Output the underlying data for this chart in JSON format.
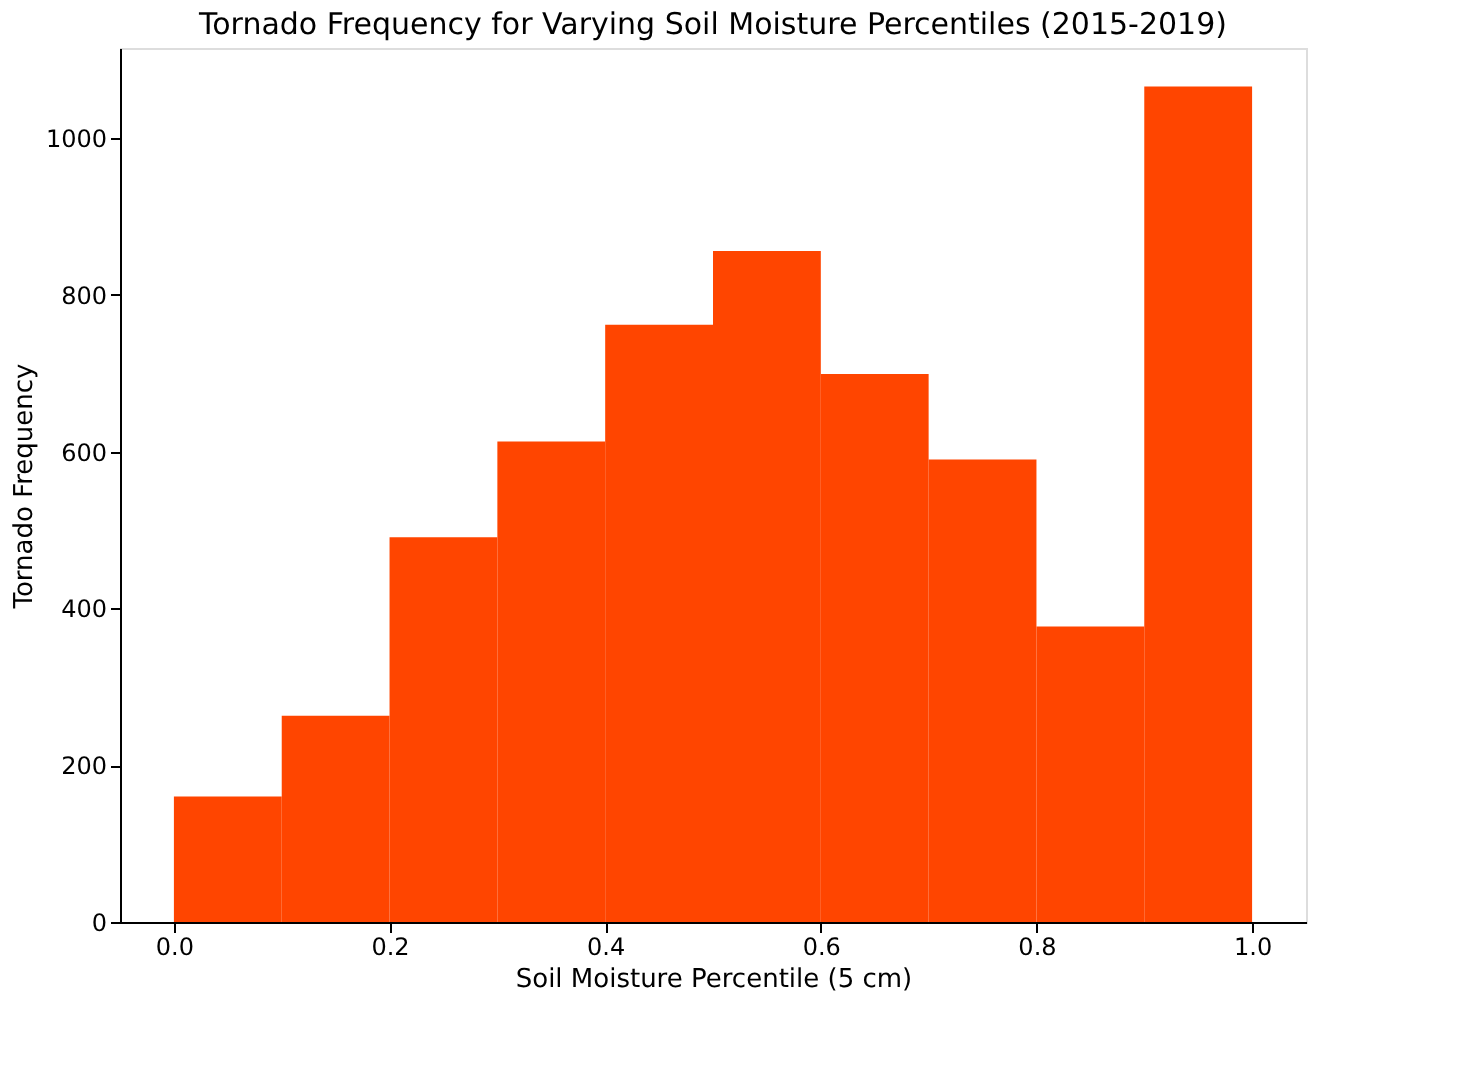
{
  "chart_data": {
    "type": "histogram",
    "title": "Tornado Frequency for Varying Soil Moisture Percentiles (2015-2019)",
    "xlabel": "Soil Moisture Percentile (5 cm)",
    "ylabel": "Tornado Frequency",
    "bins": [
      0.0,
      0.1,
      0.2,
      0.3,
      0.4,
      0.5,
      0.6,
      0.7,
      0.8,
      0.9,
      1.0
    ],
    "values": [
      160,
      263,
      491,
      613,
      762,
      856,
      699,
      590,
      377,
      1066
    ],
    "color": "#ff4500",
    "xlim": [
      -0.05,
      1.05
    ],
    "ylim": [
      0,
      1115
    ],
    "xticks": [
      {
        "value": 0,
        "label": "0.0"
      },
      {
        "value": 0.2,
        "label": "0.2"
      },
      {
        "value": 0.4,
        "label": "0.4"
      },
      {
        "value": 0.6,
        "label": "0.6"
      },
      {
        "value": 0.8,
        "label": "0.8"
      },
      {
        "value": 1,
        "label": "1.0"
      }
    ],
    "yticks": [
      0,
      200,
      400,
      600,
      800,
      1000
    ],
    "grid": false
  }
}
